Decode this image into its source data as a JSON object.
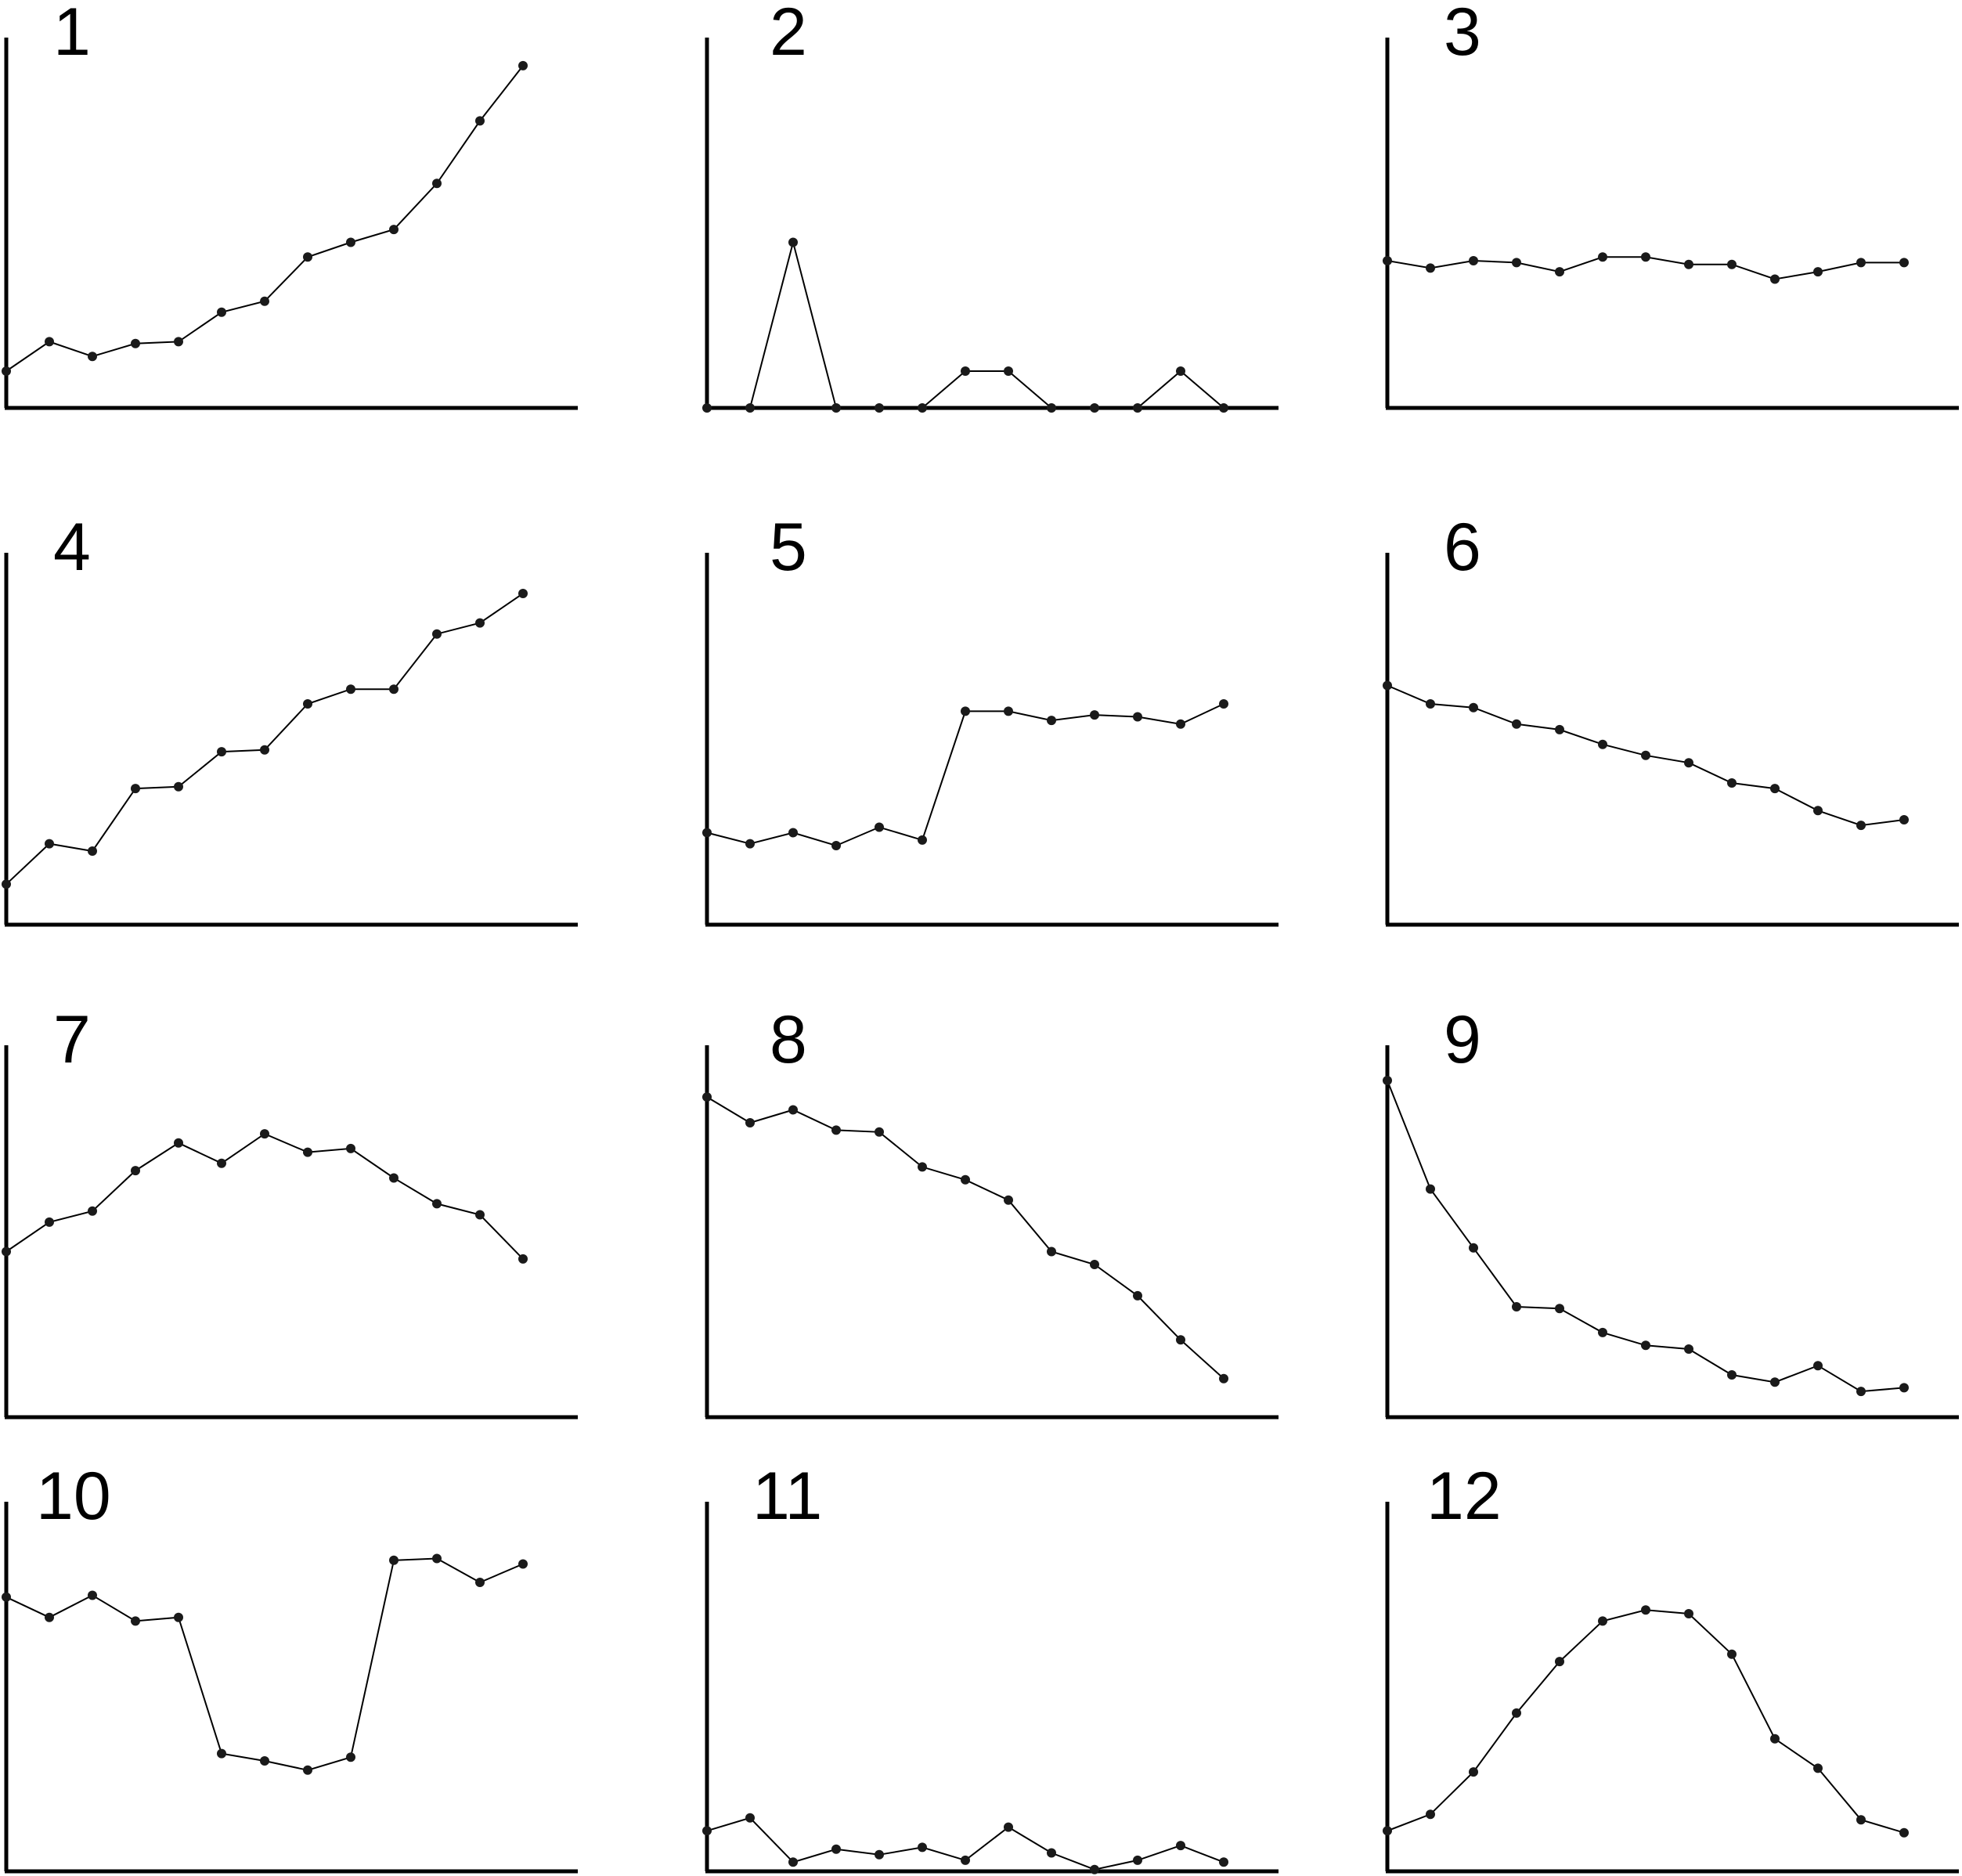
{
  "colors": {
    "background": "#ffffff",
    "axis": "#000000",
    "line": "#000000",
    "marker": "#1a1a1a"
  },
  "chart_data": [
    {
      "type": "line",
      "label": "1",
      "x": [
        1,
        2,
        3,
        4,
        5,
        6,
        7,
        8,
        9,
        10,
        11,
        12,
        13
      ],
      "values": [
        10,
        18,
        14,
        17.5,
        18,
        26,
        29,
        41,
        45,
        48.5,
        61,
        78,
        93
      ],
      "ylim": [
        0,
        100
      ],
      "grid": false
    },
    {
      "type": "line",
      "label": "2",
      "x": [
        1,
        2,
        3,
        4,
        5,
        6,
        7,
        8,
        9,
        10,
        11,
        12,
        13
      ],
      "values": [
        0,
        0,
        45,
        0,
        0,
        0,
        10,
        10,
        0,
        0,
        0,
        10,
        0
      ],
      "ylim": [
        0,
        100
      ],
      "grid": false
    },
    {
      "type": "line",
      "label": "3",
      "x": [
        1,
        2,
        3,
        4,
        5,
        6,
        7,
        8,
        9,
        10,
        11,
        12,
        13
      ],
      "values": [
        40,
        38,
        40,
        39.5,
        37,
        41,
        41,
        39,
        39,
        35,
        37,
        39.5,
        39.5
      ],
      "ylim": [
        0,
        100
      ],
      "grid": false
    },
    {
      "type": "line",
      "label": "4",
      "x": [
        1,
        2,
        3,
        4,
        5,
        6,
        7,
        8,
        9,
        10,
        11,
        12,
        13
      ],
      "values": [
        11,
        22,
        20,
        37,
        37.5,
        47,
        47.5,
        60,
        64,
        64,
        79,
        82,
        90
      ],
      "ylim": [
        0,
        100
      ],
      "grid": false
    },
    {
      "type": "line",
      "label": "5",
      "x": [
        1,
        2,
        3,
        4,
        5,
        6,
        7,
        8,
        9,
        10,
        11,
        12,
        13
      ],
      "values": [
        25,
        22,
        25,
        21.5,
        26.5,
        23,
        58,
        58,
        55.5,
        57,
        56.5,
        54.5,
        60
      ],
      "ylim": [
        0,
        100
      ],
      "grid": false
    },
    {
      "type": "line",
      "label": "6",
      "x": [
        1,
        2,
        3,
        4,
        5,
        6,
        7,
        8,
        9,
        10,
        11,
        12,
        13
      ],
      "values": [
        65,
        60,
        59,
        54.5,
        53,
        49,
        46,
        44,
        38.5,
        37,
        31,
        27,
        28.5
      ],
      "ylim": [
        0,
        100
      ],
      "grid": false
    },
    {
      "type": "line",
      "label": "7",
      "x": [
        1,
        2,
        3,
        4,
        5,
        6,
        7,
        8,
        9,
        10,
        11,
        12,
        13
      ],
      "values": [
        45,
        53,
        56,
        67,
        74.5,
        69,
        77,
        72,
        73,
        65,
        58,
        55,
        43
      ],
      "ylim": [
        0,
        100
      ],
      "grid": false
    },
    {
      "type": "line",
      "label": "8",
      "x": [
        1,
        2,
        3,
        4,
        5,
        6,
        7,
        8,
        9,
        10,
        11,
        12,
        13
      ],
      "values": [
        87,
        80,
        83.5,
        78,
        77.5,
        68,
        64.5,
        59,
        45,
        41.5,
        33,
        21,
        10.5
      ],
      "ylim": [
        0,
        100
      ],
      "grid": false
    },
    {
      "type": "line",
      "label": "9",
      "x": [
        1,
        2,
        3,
        4,
        5,
        6,
        7,
        8,
        9,
        10,
        11,
        12,
        13
      ],
      "values": [
        91.5,
        62,
        46,
        30,
        29.5,
        23,
        19.5,
        18.5,
        11.5,
        9.5,
        14,
        7,
        8
      ],
      "ylim": [
        0,
        100
      ],
      "grid": false
    },
    {
      "type": "line",
      "label": "10",
      "x": [
        1,
        2,
        3,
        4,
        5,
        6,
        7,
        8,
        9,
        10,
        11,
        12,
        13
      ],
      "values": [
        74.5,
        69,
        75,
        68,
        69,
        32,
        30,
        27.5,
        31,
        84.5,
        85,
        78.5,
        83.5
      ],
      "ylim": [
        0,
        100
      ],
      "grid": false
    },
    {
      "type": "line",
      "label": "11",
      "x": [
        1,
        2,
        3,
        4,
        5,
        6,
        7,
        8,
        9,
        10,
        11,
        12,
        13
      ],
      "values": [
        11,
        14.5,
        2.5,
        6,
        4.5,
        6.5,
        3,
        12,
        5,
        0.5,
        3,
        7,
        2.5
      ],
      "ylim": [
        0,
        100
      ],
      "grid": false
    },
    {
      "type": "line",
      "label": "12",
      "x": [
        1,
        2,
        3,
        4,
        5,
        6,
        7,
        8,
        9,
        10,
        11,
        12,
        13
      ],
      "values": [
        11,
        15.5,
        27,
        43,
        57,
        68,
        71,
        70,
        59,
        36,
        28,
        14,
        10.5
      ],
      "ylim": [
        0,
        100
      ],
      "grid": false
    }
  ]
}
